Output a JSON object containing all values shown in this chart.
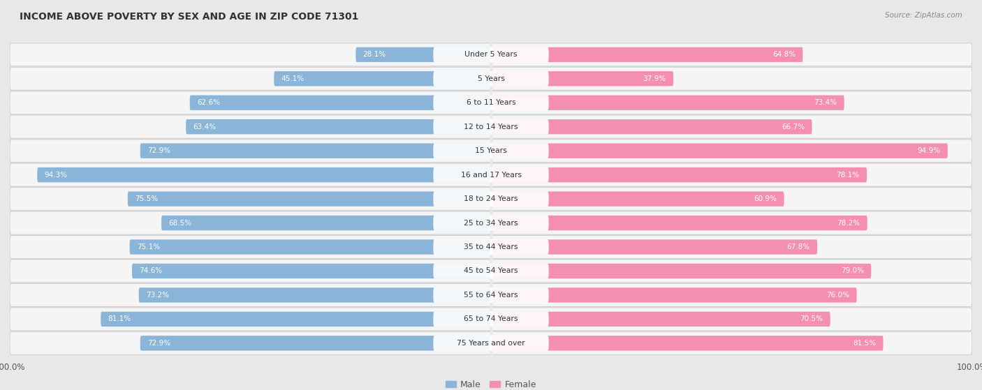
{
  "title": "INCOME ABOVE POVERTY BY SEX AND AGE IN ZIP CODE 71301",
  "source": "Source: ZipAtlas.com",
  "categories": [
    "Under 5 Years",
    "5 Years",
    "6 to 11 Years",
    "12 to 14 Years",
    "15 Years",
    "16 and 17 Years",
    "18 to 24 Years",
    "25 to 34 Years",
    "35 to 44 Years",
    "45 to 54 Years",
    "55 to 64 Years",
    "65 to 74 Years",
    "75 Years and over"
  ],
  "male": [
    28.1,
    45.1,
    62.6,
    63.4,
    72.9,
    94.3,
    75.5,
    68.5,
    75.1,
    74.6,
    73.2,
    81.1,
    72.9
  ],
  "female": [
    64.8,
    37.9,
    73.4,
    66.7,
    94.9,
    78.1,
    60.9,
    78.2,
    67.8,
    79.0,
    76.0,
    70.5,
    81.5
  ],
  "male_color": "#8ab4d8",
  "female_color": "#f48fb1",
  "background_color": "#e8e8e8",
  "row_bg_color": "#f5f5f5",
  "row_border_color": "#d0d0d0",
  "label_inside_color": "#ffffff",
  "label_outside_color": "#555555",
  "cat_label_color": "#333333",
  "title_color": "#333333",
  "source_color": "#888888",
  "tick_color": "#555555",
  "legend_label_color": "#555555"
}
